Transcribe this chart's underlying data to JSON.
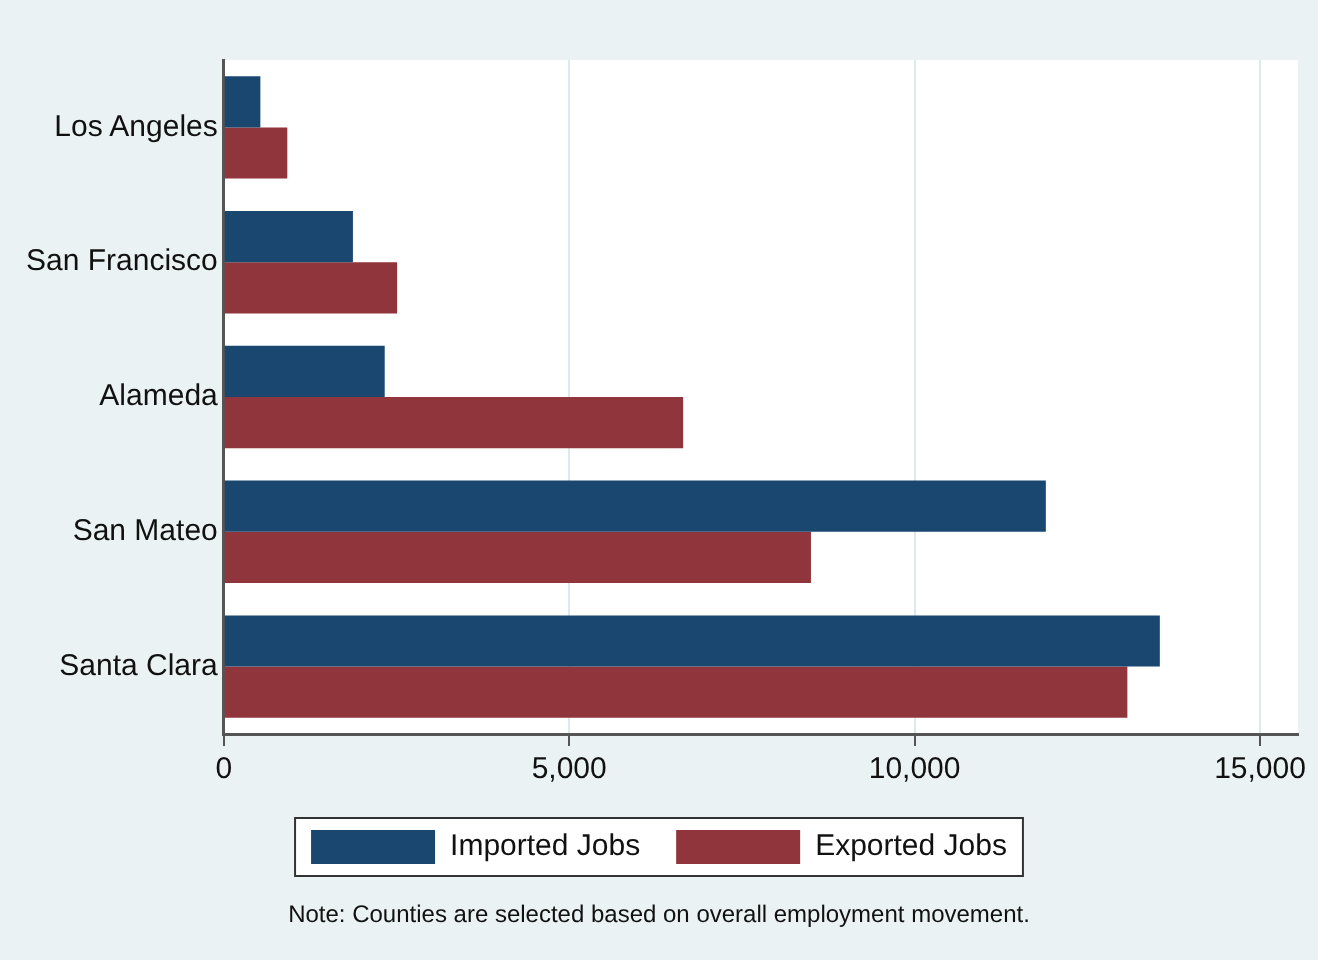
{
  "chart_data": {
    "type": "bar",
    "orientation": "horizontal",
    "categories": [
      "Los Angeles",
      "San Francisco",
      "Alameda",
      "San Mateo",
      "Santa Clara"
    ],
    "series": [
      {
        "name": "Imported Jobs",
        "color": "#1a476f",
        "values": [
          530,
          1870,
          2330,
          11900,
          13550
        ]
      },
      {
        "name": "Exported Jobs",
        "color": "#90353b",
        "values": [
          920,
          2510,
          6650,
          8500,
          13080
        ]
      }
    ],
    "xlim": [
      0,
      15550
    ],
    "xticks": [
      0,
      {
        "value": 5000,
        "label": "5,000"
      },
      {
        "value": 10000,
        "label": "10,000"
      },
      {
        "value": 15000,
        "label": "15,000"
      }
    ],
    "grid": "x",
    "legend": "bottom",
    "annotations": [
      "Note: Counties are selected based on overall employment movement."
    ]
  }
}
